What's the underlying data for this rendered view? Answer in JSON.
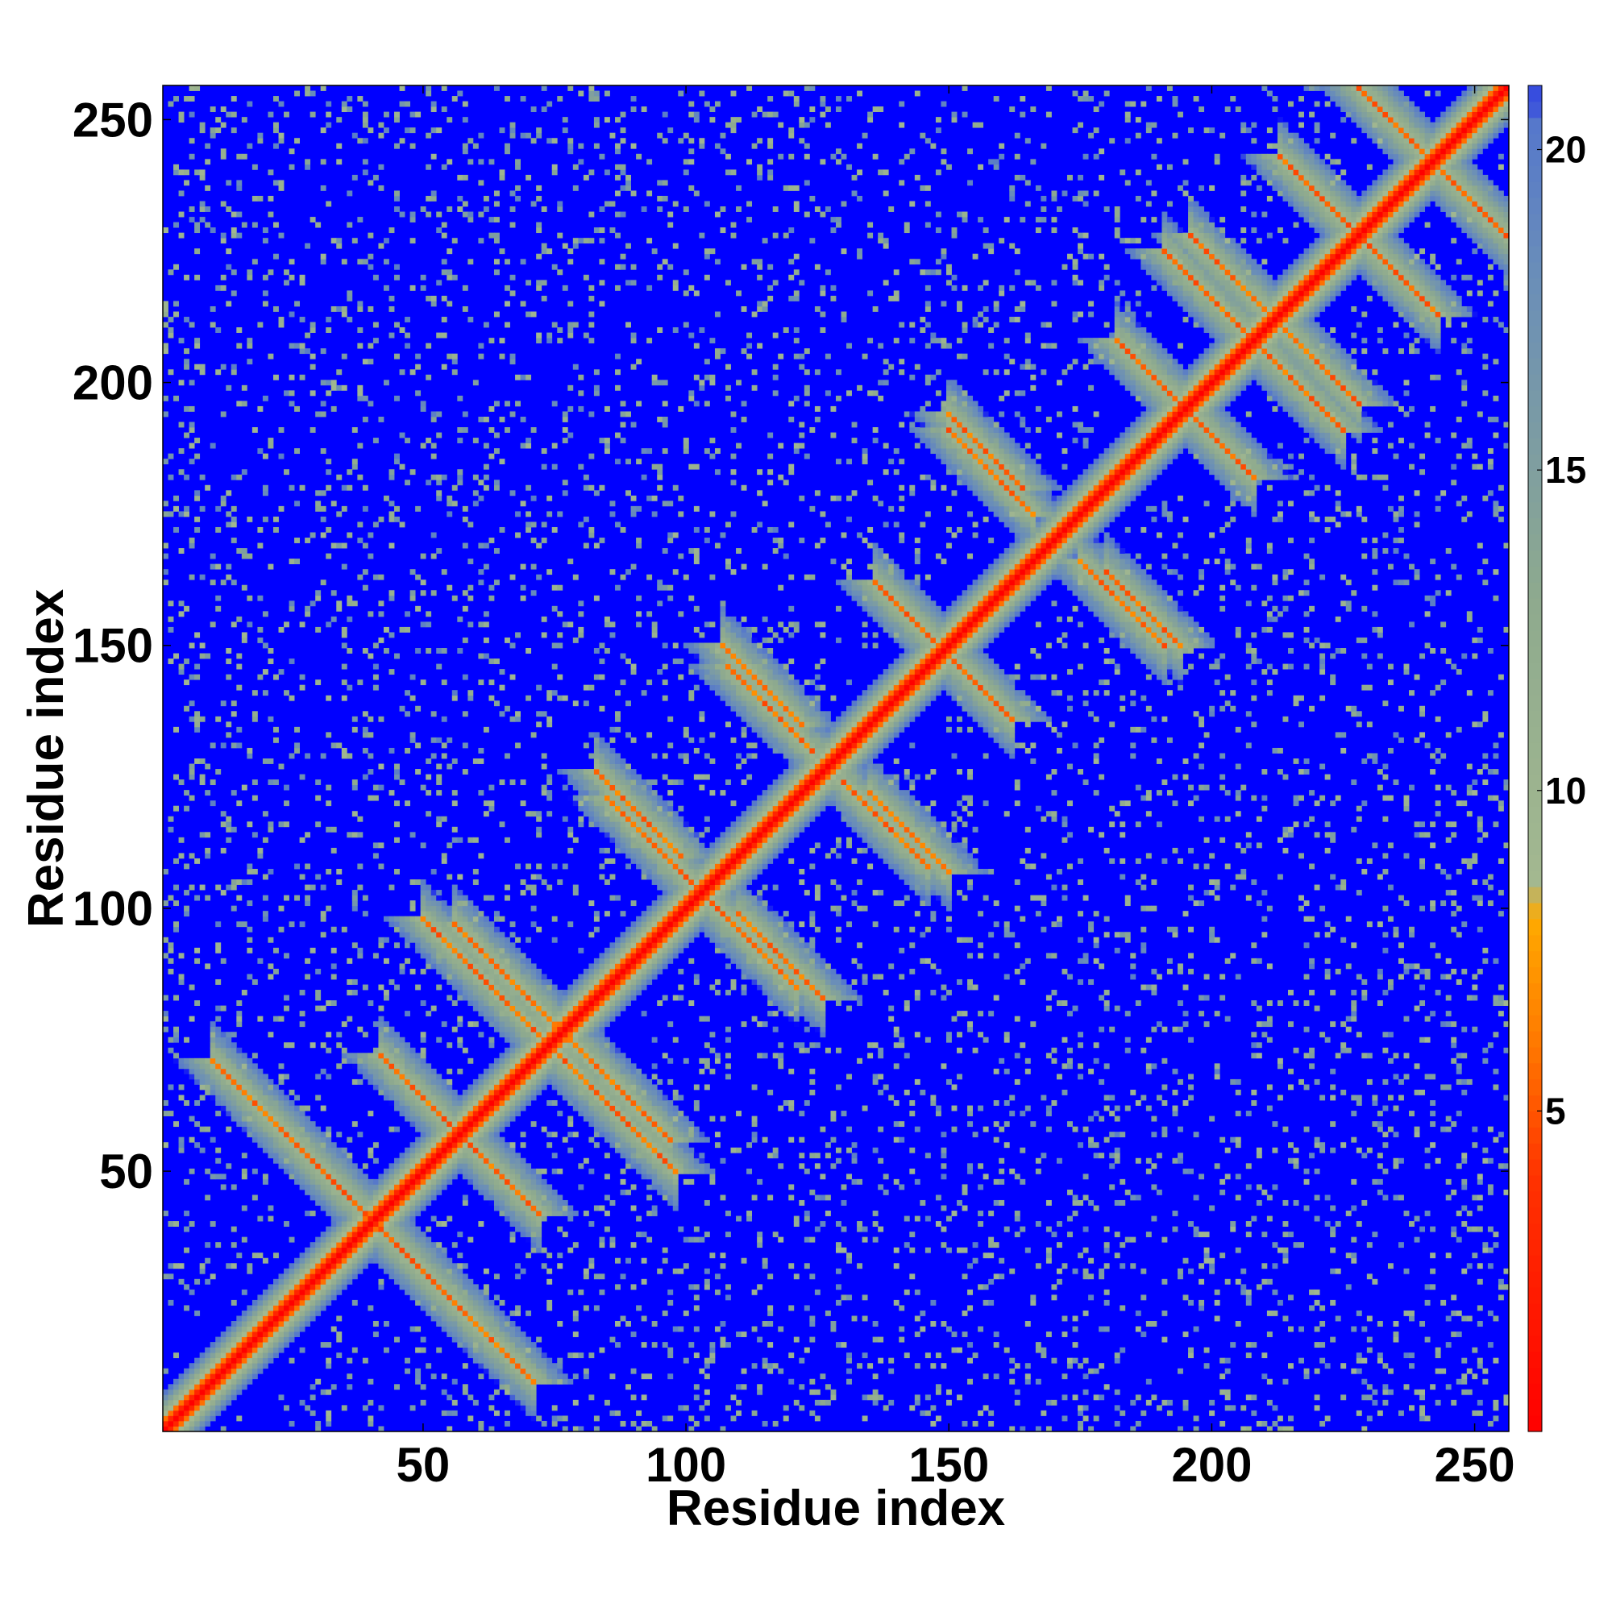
{
  "chart_data": {
    "type": "heatmap",
    "title": "",
    "xlabel": "Residue index",
    "ylabel": "Residue index",
    "n_residues": 256,
    "xlim": [
      1,
      256
    ],
    "ylim": [
      1,
      256
    ],
    "x_ticks": [
      50,
      100,
      150,
      200,
      250
    ],
    "y_ticks": [
      50,
      100,
      150,
      200,
      250
    ],
    "colorbar": {
      "range": [
        0,
        21
      ],
      "ticks": [
        5,
        10,
        15,
        20
      ],
      "stops": [
        {
          "value": 0,
          "color": "#ff0000"
        },
        {
          "value": 4,
          "color": "#ff3300"
        },
        {
          "value": 6,
          "color": "#ff7700"
        },
        {
          "value": 8,
          "color": "#ffaa00"
        },
        {
          "value": 8.6,
          "color": "#a3b890"
        },
        {
          "value": 13,
          "color": "#8eaa8e"
        },
        {
          "value": 18,
          "color": "#6a8eb8"
        },
        {
          "value": 20.5,
          "color": "#5577cc"
        },
        {
          "value": 21,
          "color": "#0000ff"
        }
      ],
      "saturated_color": "#0000ff"
    },
    "colors": {
      "background_fill": "#0000ff",
      "contact_close": "#ff0000",
      "contact_mid": "#ff8800",
      "contact_far": "#9ab58e"
    },
    "structure": {
      "description_of_features": "symmetric residue distance map; main diagonal distance 0; helical bundle cross-diagonal bands",
      "anti_diagonals": [
        {
          "from": [
            25,
            56
          ],
          "to": [
            71,
            10
          ]
        },
        {
          "from": [
            42,
            72
          ],
          "to": [
            58,
            56
          ]
        },
        {
          "from": [
            56,
            97
          ],
          "to": [
            76,
            77
          ]
        },
        {
          "from": [
            70,
            78
          ],
          "to": [
            98,
            50
          ]
        },
        {
          "from": [
            85,
            121
          ],
          "to": [
            106,
            100
          ]
        },
        {
          "from": [
            108,
            146
          ],
          "to": [
            124,
            130
          ]
        },
        {
          "from": [
            110,
            99
          ],
          "to": [
            126,
            83
          ]
        },
        {
          "from": [
            135,
            122
          ],
          "to": [
            150,
            107
          ]
        },
        {
          "from": [
            137,
            161
          ],
          "to": [
            162,
            136
          ]
        },
        {
          "from": [
            150,
            191
          ],
          "to": [
            166,
            175
          ]
        },
        {
          "from": [
            180,
            164
          ],
          "to": [
            194,
            150
          ]
        },
        {
          "from": [
            182,
            208
          ],
          "to": [
            205,
            185
          ]
        },
        {
          "from": [
            196,
            228
          ],
          "to": [
            215,
            209
          ]
        },
        {
          "from": [
            206,
            210
          ],
          "to": [
            225,
            191
          ]
        },
        {
          "from": [
            213,
            243
          ],
          "to": [
            240,
            216
          ]
        },
        {
          "from": [
            228,
            256
          ],
          "to": [
            256,
            228
          ]
        }
      ]
    }
  }
}
